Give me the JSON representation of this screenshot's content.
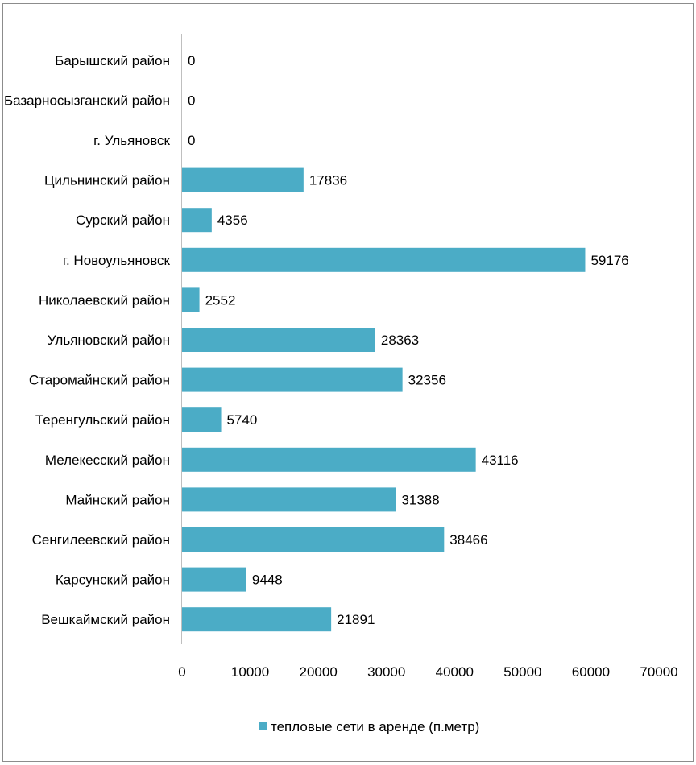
{
  "chart_data": {
    "type": "bar",
    "orientation": "horizontal",
    "categories": [
      "Барышский район",
      "Базарносызганский район",
      "г. Ульяновск",
      "Цильнинский район",
      "Сурский район",
      "г. Новоульяновск",
      "Николаевский район",
      "Ульяновский район",
      "Старомайнский район",
      "Теренгульский район",
      "Мелекесский район",
      "Майнский район",
      "Сенгилеевский район",
      "Карсунский район",
      "Вешкаймский район"
    ],
    "series": [
      {
        "name": "тепловые сети в аренде (п.метр)",
        "values": [
          0,
          0,
          0,
          17836,
          4356,
          59176,
          2552,
          28363,
          32356,
          5740,
          43116,
          31388,
          38466,
          9448,
          21891
        ],
        "color": "#4bacc6"
      }
    ],
    "value_labels": [
      "0",
      "0",
      "0",
      "17836",
      "4356",
      "59176",
      "2552",
      "28363",
      "32356",
      "5740",
      "43116",
      "31388",
      "38466",
      "9448",
      "21891"
    ],
    "xlim": [
      0,
      70000
    ],
    "x_ticks": [
      "0",
      "10000",
      "20000",
      "30000",
      "40000",
      "50000",
      "60000",
      "70000"
    ],
    "grid": false,
    "legend_position": "bottom"
  }
}
